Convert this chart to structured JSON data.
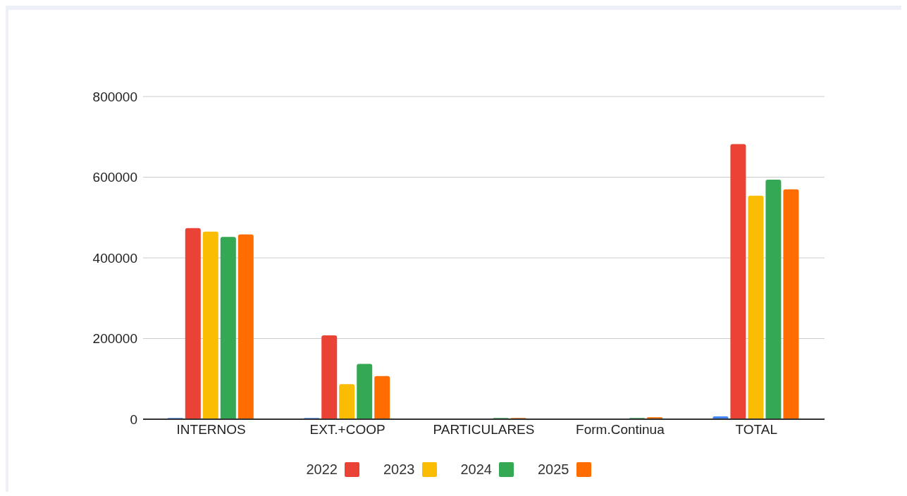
{
  "chart_data": {
    "type": "bar",
    "categories": [
      "INTERNOS",
      "EXT.+COOP",
      "PARTICULARES",
      "Form.Continua",
      "TOTAL"
    ],
    "series": [
      {
        "color": "#4285f4",
        "values": [
          3000,
          3000,
          null,
          null,
          7000
        ]
      },
      {
        "name": "2022",
        "color": "#ea4335",
        "values": [
          474000,
          208000,
          null,
          null,
          682000
        ]
      },
      {
        "name": "2023",
        "color": "#fbbc04",
        "values": [
          465000,
          87000,
          null,
          null,
          554000
        ]
      },
      {
        "name": "2024",
        "color": "#34a853",
        "values": [
          452000,
          137000,
          3000,
          3000,
          594000
        ]
      },
      {
        "name": "2025",
        "color": "#ff6d01",
        "values": [
          458000,
          107000,
          3000,
          5000,
          570000
        ]
      }
    ],
    "ylim": [
      0,
      800000
    ],
    "yticks": [
      0,
      200000,
      400000,
      600000,
      800000
    ],
    "grid": "y",
    "legend": "bottom"
  }
}
